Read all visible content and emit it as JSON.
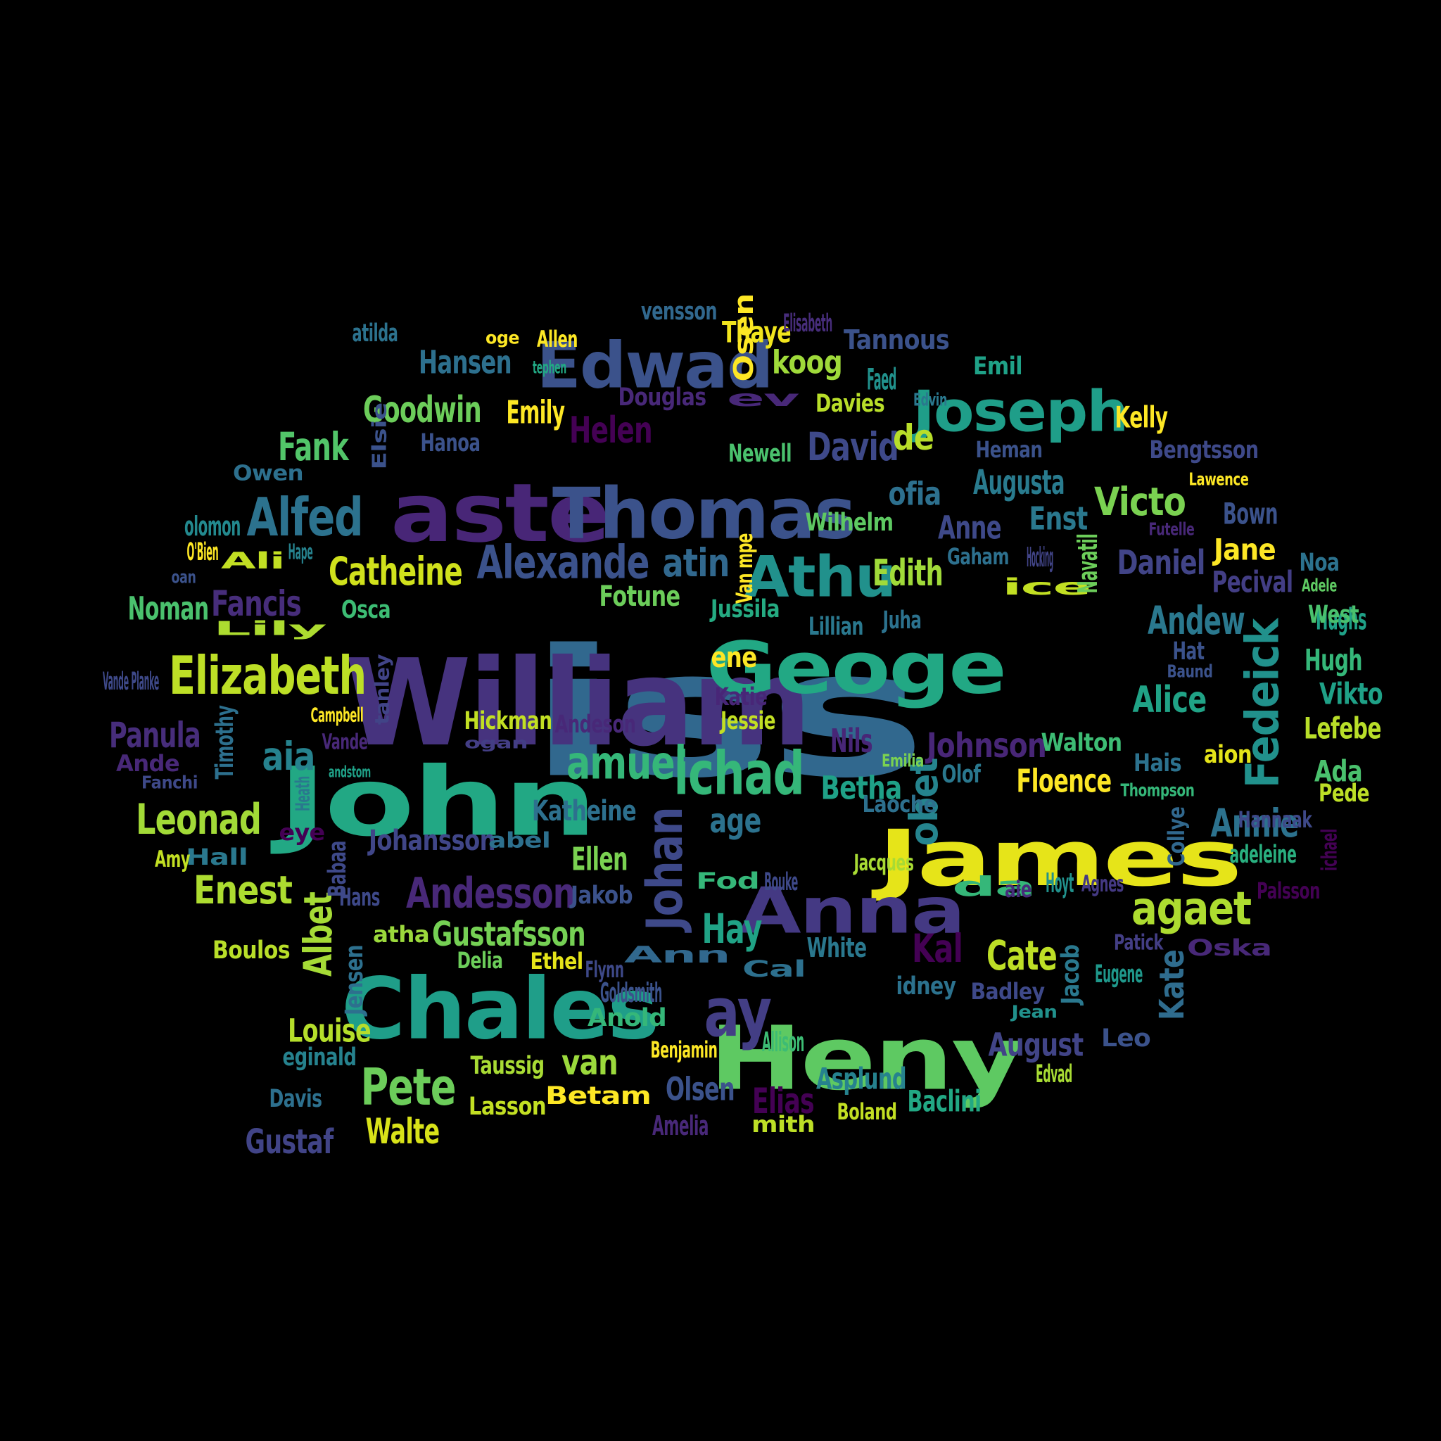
{
  "word_cloud": {
    "palette": "viridis",
    "background": "#000000",
    "words": [
      {
        "text": "iss",
        "color": "#31688e"
      },
      {
        "text": "William",
        "color": "#46337e"
      },
      {
        "text": "John",
        "color": "#22a884"
      },
      {
        "text": "aste",
        "color": "#482677"
      },
      {
        "text": "Thomas",
        "color": "#3b528b"
      },
      {
        "text": "Heny",
        "color": "#5ec962"
      },
      {
        "text": "Chales",
        "color": "#1f9e89"
      },
      {
        "text": "James",
        "color": "#e6e419"
      },
      {
        "text": "Geoge",
        "color": "#22a884"
      },
      {
        "text": "Edwad",
        "color": "#3b528b"
      },
      {
        "text": "Joseph",
        "color": "#1f9e89"
      },
      {
        "text": "Anna",
        "color": "#443983"
      },
      {
        "text": "Elizabeth",
        "color": "#bddf26"
      },
      {
        "text": "ichad",
        "color": "#35b779"
      },
      {
        "text": "amuel",
        "color": "#35b779"
      },
      {
        "text": "Alexande",
        "color": "#3b528b"
      },
      {
        "text": "Athu",
        "color": "#21918c"
      },
      {
        "text": "Fedeick",
        "color": "#21918c"
      },
      {
        "text": "Johan",
        "color": "#3e4989"
      },
      {
        "text": "ay",
        "color": "#433e85"
      },
      {
        "text": "Alfed",
        "color": "#2c728e"
      },
      {
        "text": "Pete",
        "color": "#6ccd5a"
      },
      {
        "text": "agaet",
        "color": "#addc30"
      },
      {
        "text": "Andesson",
        "color": "#482878"
      },
      {
        "text": "Leonad",
        "color": "#a2da37"
      },
      {
        "text": "Enest",
        "color": "#addc30"
      },
      {
        "text": "Catheine",
        "color": "#d0e11c"
      },
      {
        "text": "Victo",
        "color": "#7ad151"
      },
      {
        "text": "Andew",
        "color": "#2a788e"
      },
      {
        "text": "Goodwin",
        "color": "#6ccd5a"
      },
      {
        "text": "Fank",
        "color": "#52c569"
      },
      {
        "text": "Cate",
        "color": "#bddf26"
      },
      {
        "text": "Kal",
        "color": "#440154"
      },
      {
        "text": "David",
        "color": "#3e4989"
      },
      {
        "text": "Johnson",
        "color": "#482677"
      },
      {
        "text": "obet",
        "color": "#25848e"
      },
      {
        "text": "Annie",
        "color": "#2c728e"
      },
      {
        "text": "aia",
        "color": "#26828e"
      },
      {
        "text": "Helen",
        "color": "#440154"
      },
      {
        "text": "Panula",
        "color": "#472d7b"
      },
      {
        "text": "Hay",
        "color": "#20a386"
      },
      {
        "text": "Daniel",
        "color": "#414487"
      },
      {
        "text": "atin",
        "color": "#31688e"
      },
      {
        "text": "Edith",
        "color": "#a0da39"
      },
      {
        "text": "Augusta",
        "color": "#297b8e"
      },
      {
        "text": "Albet",
        "color": "#a5db36"
      },
      {
        "text": "Hansen",
        "color": "#2d708e"
      },
      {
        "text": "koog",
        "color": "#9fda3a"
      },
      {
        "text": "Elias",
        "color": "#440154"
      },
      {
        "text": "August",
        "color": "#414487"
      },
      {
        "text": "Alice",
        "color": "#20a386"
      },
      {
        "text": "Kate",
        "color": "#2f6c8e"
      },
      {
        "text": "Floence",
        "color": "#fde725"
      },
      {
        "text": "Louise",
        "color": "#b5de2b"
      },
      {
        "text": "Betha",
        "color": "#1fa187"
      },
      {
        "text": "Fancis",
        "color": "#472d7b"
      },
      {
        "text": "Nils",
        "color": "#482677"
      },
      {
        "text": "Noman",
        "color": "#4ac16d"
      },
      {
        "text": "Walte",
        "color": "#d8e219"
      },
      {
        "text": "Johansson",
        "color": "#404688"
      },
      {
        "text": "Katheine",
        "color": "#2d708e"
      },
      {
        "text": "Emily",
        "color": "#fde725"
      },
      {
        "text": "Gustafsson",
        "color": "#75d054"
      },
      {
        "text": "age",
        "color": "#2c728e"
      },
      {
        "text": "van",
        "color": "#9bd93c"
      },
      {
        "text": "Olsen",
        "color": "#3b528b"
      },
      {
        "text": "Thaye",
        "color": "#f1e51d"
      },
      {
        "text": "Jane",
        "color": "#fde725"
      },
      {
        "text": "Asplund",
        "color": "#26828e"
      },
      {
        "text": "Gustaf",
        "color": "#414487"
      },
      {
        "text": "Bown",
        "color": "#3b528b"
      },
      {
        "text": "Hughs",
        "color": "#1fa187"
      },
      {
        "text": "Hugh",
        "color": "#35b779"
      },
      {
        "text": "Ellen",
        "color": "#7ad151"
      },
      {
        "text": "Anne",
        "color": "#3e4989"
      },
      {
        "text": "Enst",
        "color": "#2a788e"
      },
      {
        "text": "Pecival",
        "color": "#433e85"
      },
      {
        "text": "Baclini",
        "color": "#22a884"
      },
      {
        "text": "Vikto",
        "color": "#1fa187"
      },
      {
        "text": "Lefebe",
        "color": "#b8de29"
      },
      {
        "text": "Ada",
        "color": "#4ac16d"
      },
      {
        "text": "ofia",
        "color": "#2d708e"
      },
      {
        "text": "de",
        "color": "#b8de29"
      },
      {
        "text": "Kelly",
        "color": "#fde725"
      },
      {
        "text": "Newell",
        "color": "#4ac16d"
      },
      {
        "text": "Hanoa",
        "color": "#3b528b"
      },
      {
        "text": "Bengtsson",
        "color": "#3e4989"
      },
      {
        "text": "Wilhelm",
        "color": "#5ec962"
      },
      {
        "text": "Davies",
        "color": "#b8de29"
      },
      {
        "text": "Fotune",
        "color": "#6ccd5a"
      },
      {
        "text": "Jussila",
        "color": "#25ab82"
      },
      {
        "text": "Lillian",
        "color": "#2a788e"
      },
      {
        "text": "Juha",
        "color": "#2c728e"
      },
      {
        "text": "ene",
        "color": "#fde725"
      },
      {
        "text": "Katie",
        "color": "#482677"
      },
      {
        "text": "Jessie",
        "color": "#c2df23"
      },
      {
        "text": "Hickman",
        "color": "#c2df23"
      },
      {
        "text": "Andeson",
        "color": "#482878"
      },
      {
        "text": "Walton",
        "color": "#3dbc74"
      },
      {
        "text": "Hais",
        "color": "#2c728e"
      },
      {
        "text": "aion",
        "color": "#e5e419"
      },
      {
        "text": "Pede",
        "color": "#bddf26"
      },
      {
        "text": "Hannaak",
        "color": "#3e4989"
      },
      {
        "text": "Laoche",
        "color": "#2d708e"
      },
      {
        "text": "Jacques",
        "color": "#a8db34"
      },
      {
        "text": "da",
        "color": "#35b779"
      },
      {
        "text": "aie",
        "color": "#472d7b"
      },
      {
        "text": "Hoyt",
        "color": "#21918c"
      },
      {
        "text": "Agnes",
        "color": "#443983"
      },
      {
        "text": "Palsson",
        "color": "#440154"
      },
      {
        "text": "adeleine",
        "color": "#29af7f"
      },
      {
        "text": "Oska",
        "color": "#482878"
      },
      {
        "text": "Patick",
        "color": "#433e85"
      },
      {
        "text": "Jacob",
        "color": "#2a788e"
      },
      {
        "text": "Eugene",
        "color": "#1f988b"
      },
      {
        "text": "Badley",
        "color": "#3e4989"
      },
      {
        "text": "Jean",
        "color": "#21918c"
      },
      {
        "text": "Leo",
        "color": "#3b528b"
      },
      {
        "text": "Edvad",
        "color": "#a8db34"
      },
      {
        "text": "idney",
        "color": "#2c728e"
      },
      {
        "text": "White",
        "color": "#2a788e"
      },
      {
        "text": "Cal",
        "color": "#2d708e"
      },
      {
        "text": "Bouke",
        "color": "#3e4989"
      },
      {
        "text": "Fod",
        "color": "#35b779"
      },
      {
        "text": "Allison",
        "color": "#3dbc74"
      },
      {
        "text": "Boland",
        "color": "#c2df23"
      },
      {
        "text": "mith",
        "color": "#bddf26"
      },
      {
        "text": "Amelia",
        "color": "#482878"
      },
      {
        "text": "Benjamin",
        "color": "#fde725"
      },
      {
        "text": "Betam",
        "color": "#fde725"
      },
      {
        "text": "Lasson",
        "color": "#c2df23"
      },
      {
        "text": "Taussig",
        "color": "#a8db34"
      },
      {
        "text": "Anold",
        "color": "#35b779"
      },
      {
        "text": "Goldsmith",
        "color": "#3b528b"
      },
      {
        "text": "Ann",
        "color": "#31688e"
      },
      {
        "text": "Flynn",
        "color": "#3e4989"
      },
      {
        "text": "Ethel",
        "color": "#e5e419"
      },
      {
        "text": "Delia",
        "color": "#6ccd5a"
      },
      {
        "text": "atha",
        "color": "#9bd93c"
      },
      {
        "text": "Jakob",
        "color": "#3b528b"
      },
      {
        "text": "abel",
        "color": "#2d708e"
      },
      {
        "text": "Hans",
        "color": "#3e4989"
      },
      {
        "text": "Babaa",
        "color": "#3e4989"
      },
      {
        "text": "Hall",
        "color": "#2a788e"
      },
      {
        "text": "Amy",
        "color": "#c2df23"
      },
      {
        "text": "eye",
        "color": "#440154"
      },
      {
        "text": "Heath",
        "color": "#2a788e"
      },
      {
        "text": "andstom",
        "color": "#1fa187"
      },
      {
        "text": "ogan",
        "color": "#433e85"
      },
      {
        "text": "Vande",
        "color": "#482878"
      },
      {
        "text": "Campbell",
        "color": "#fde725"
      },
      {
        "text": "tanley",
        "color": "#414487"
      },
      {
        "text": "Timothy",
        "color": "#2d708e"
      },
      {
        "text": "Fanchi",
        "color": "#3e4989"
      },
      {
        "text": "Ande",
        "color": "#482878"
      },
      {
        "text": "Vande Planke",
        "color": "#3e4989"
      },
      {
        "text": "Lily",
        "color": "#addc30"
      },
      {
        "text": "oan",
        "color": "#3b528b"
      },
      {
        "text": "O'Bien",
        "color": "#fde725"
      },
      {
        "text": "Ali",
        "color": "#c2df23"
      },
      {
        "text": "Hape",
        "color": "#26828e"
      },
      {
        "text": "olomon",
        "color": "#23898e"
      },
      {
        "text": "Owen",
        "color": "#2d708e"
      },
      {
        "text": "atilda",
        "color": "#2c728e"
      },
      {
        "text": "Elsie",
        "color": "#3b528b"
      },
      {
        "text": "Osca",
        "color": "#3dbc74"
      },
      {
        "text": "oge",
        "color": "#fde725"
      },
      {
        "text": "Allen",
        "color": "#fde725"
      },
      {
        "text": "tephen",
        "color": "#22a884"
      },
      {
        "text": "vensson",
        "color": "#31688e"
      },
      {
        "text": "Osen",
        "color": "#fde725"
      },
      {
        "text": "Elisabeth",
        "color": "#472d7b"
      },
      {
        "text": "Tannous",
        "color": "#3b528b"
      },
      {
        "text": "Douglas",
        "color": "#482878"
      },
      {
        "text": "ev",
        "color": "#482878"
      },
      {
        "text": "Faed",
        "color": "#21918c"
      },
      {
        "text": "Edvin",
        "color": "#2a788e"
      },
      {
        "text": "Emil",
        "color": "#1fa187"
      },
      {
        "text": "Heman",
        "color": "#3b528b"
      },
      {
        "text": "Lawence",
        "color": "#fde725"
      },
      {
        "text": "Futelle",
        "color": "#482878"
      },
      {
        "text": "Noa",
        "color": "#2c728e"
      },
      {
        "text": "Adele",
        "color": "#5ec962"
      },
      {
        "text": "West",
        "color": "#4ac16d"
      },
      {
        "text": "Hat",
        "color": "#3b528b"
      },
      {
        "text": "Baund",
        "color": "#3b528b"
      },
      {
        "text": "Gaham",
        "color": "#2d708e"
      },
      {
        "text": "ice",
        "color": "#c2df23"
      },
      {
        "text": "Hocking",
        "color": "#414487"
      },
      {
        "text": "Navatil",
        "color": "#6ccd5a"
      },
      {
        "text": "Van mpe",
        "color": "#fde725"
      },
      {
        "text": "Emilia",
        "color": "#7ad151"
      },
      {
        "text": "Olof",
        "color": "#2a788e"
      },
      {
        "text": "Thompson",
        "color": "#35b779"
      },
      {
        "text": "Collye",
        "color": "#31688e"
      },
      {
        "text": "ichael",
        "color": "#440154"
      },
      {
        "text": "Boulos",
        "color": "#b8de29"
      },
      {
        "text": "Jensen",
        "color": "#2d708e"
      },
      {
        "text": "eginald",
        "color": "#26828e"
      },
      {
        "text": "Davis",
        "color": "#2d708e"
      }
    ]
  }
}
